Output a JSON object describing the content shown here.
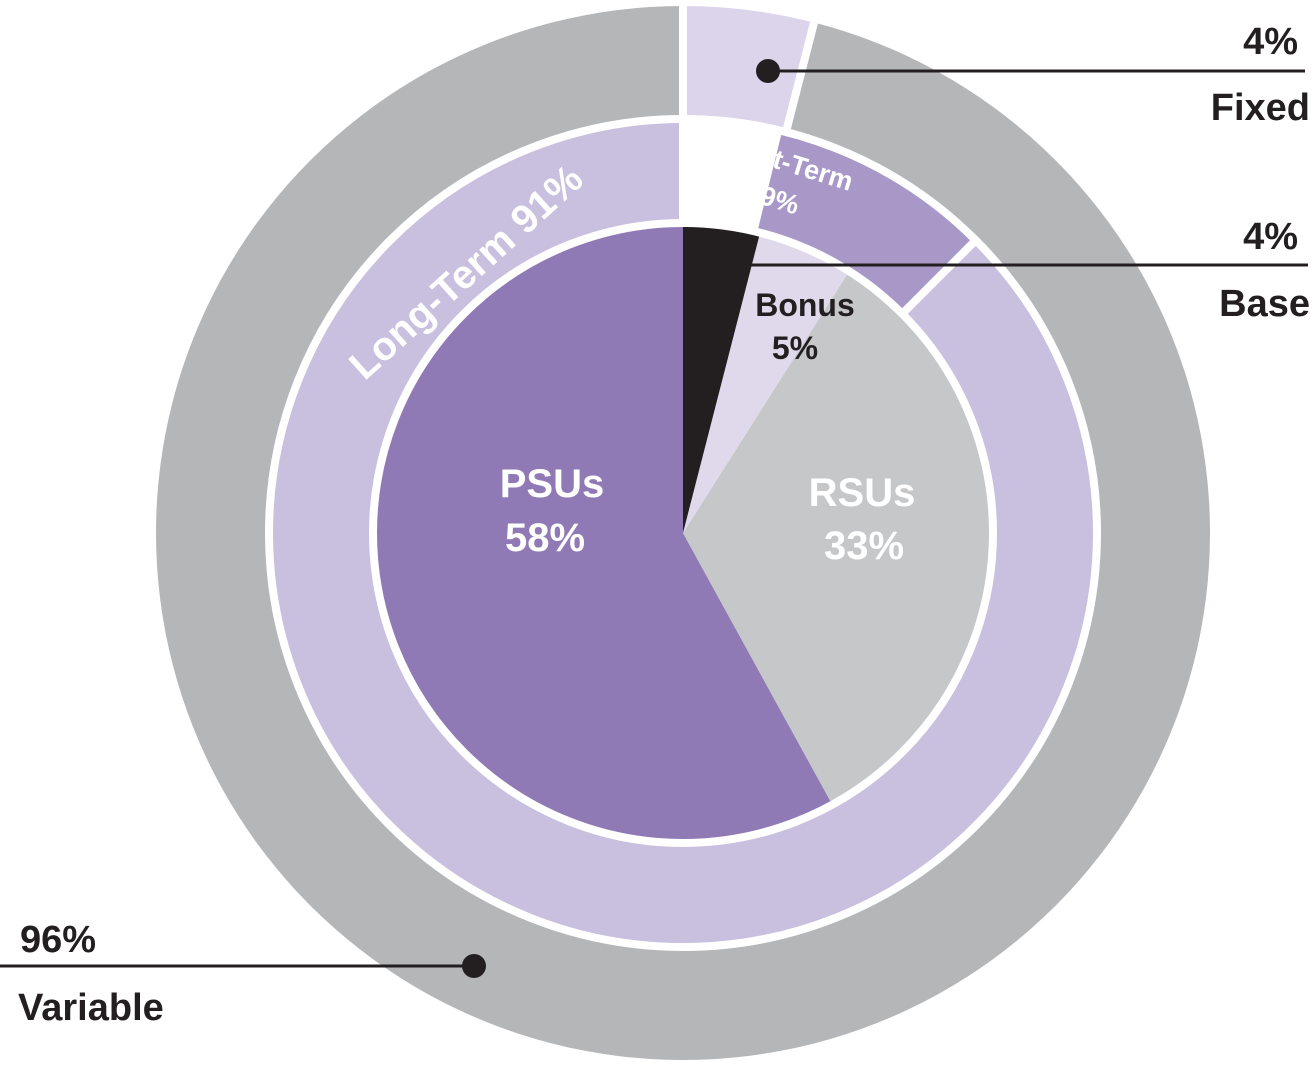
{
  "chart_data": {
    "type": "pie",
    "rings": [
      {
        "ring": "outer",
        "slices": [
          {
            "key": "fixed",
            "value": 4,
            "pct_label": "4%",
            "label": "Fixed",
            "color": "#dcd4ea"
          },
          {
            "key": "variable",
            "value": 96,
            "pct_label": "96%",
            "label": "Variable",
            "color": "#b5b6b8"
          }
        ]
      },
      {
        "ring": "middle",
        "slices": [
          {
            "key": "base",
            "value": 4,
            "label": "",
            "color": "#ffffff"
          },
          {
            "key": "short_term",
            "value": 9,
            "label": "Short-Term",
            "pct_label": "9%",
            "color": "#a898c8"
          },
          {
            "key": "long_term",
            "value": 91,
            "label": "Long-Term 91%",
            "color": "#c9bfde"
          }
        ]
      },
      {
        "ring": "inner",
        "slices": [
          {
            "key": "base",
            "value": 4,
            "pct_label": "4%",
            "label": "Base",
            "color": "#231f20"
          },
          {
            "key": "bonus",
            "value": 5,
            "pct_label": "5%",
            "label": "Bonus",
            "color": "#e0d9ec"
          },
          {
            "key": "rsus",
            "value": 33,
            "pct_label": "33%",
            "label": "RSUs",
            "color": "#c6c7c9"
          },
          {
            "key": "psus",
            "value": 58,
            "pct_label": "58%",
            "label": "PSUs",
            "color": "#907ab6"
          }
        ]
      }
    ],
    "colors": {
      "separator": "#ffffff",
      "text_dark": "#231f20",
      "text_white": "#ffffff"
    }
  }
}
